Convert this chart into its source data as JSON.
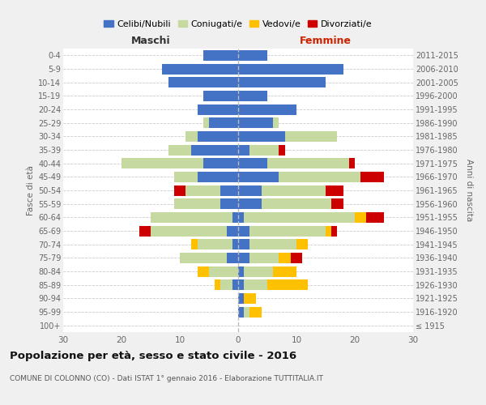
{
  "age_groups": [
    "100+",
    "95-99",
    "90-94",
    "85-89",
    "80-84",
    "75-79",
    "70-74",
    "65-69",
    "60-64",
    "55-59",
    "50-54",
    "45-49",
    "40-44",
    "35-39",
    "30-34",
    "25-29",
    "20-24",
    "15-19",
    "10-14",
    "5-9",
    "0-4"
  ],
  "birth_years": [
    "≤ 1915",
    "1916-1920",
    "1921-1925",
    "1926-1930",
    "1931-1935",
    "1936-1940",
    "1941-1945",
    "1946-1950",
    "1951-1955",
    "1956-1960",
    "1961-1965",
    "1966-1970",
    "1971-1975",
    "1976-1980",
    "1981-1985",
    "1986-1990",
    "1991-1995",
    "1996-2000",
    "2001-2005",
    "2006-2010",
    "2011-2015"
  ],
  "male": {
    "celibi": [
      0,
      0,
      0,
      1,
      0,
      2,
      1,
      2,
      1,
      3,
      3,
      7,
      6,
      8,
      7,
      5,
      7,
      6,
      12,
      13,
      6
    ],
    "coniugati": [
      0,
      0,
      0,
      2,
      5,
      8,
      6,
      13,
      14,
      8,
      6,
      4,
      14,
      4,
      2,
      1,
      0,
      0,
      0,
      0,
      0
    ],
    "vedovi": [
      0,
      0,
      0,
      1,
      2,
      0,
      1,
      0,
      0,
      0,
      0,
      0,
      0,
      0,
      0,
      0,
      0,
      0,
      0,
      0,
      0
    ],
    "divorziati": [
      0,
      0,
      0,
      0,
      0,
      0,
      0,
      2,
      0,
      0,
      2,
      0,
      0,
      0,
      0,
      0,
      0,
      0,
      0,
      0,
      0
    ]
  },
  "female": {
    "nubili": [
      0,
      1,
      1,
      1,
      1,
      2,
      2,
      2,
      1,
      4,
      4,
      7,
      5,
      2,
      8,
      6,
      10,
      5,
      15,
      18,
      5
    ],
    "coniugate": [
      0,
      1,
      0,
      4,
      5,
      5,
      8,
      13,
      19,
      12,
      11,
      14,
      14,
      5,
      9,
      1,
      0,
      0,
      0,
      0,
      0
    ],
    "vedove": [
      0,
      2,
      2,
      7,
      4,
      2,
      2,
      1,
      2,
      0,
      0,
      0,
      0,
      0,
      0,
      0,
      0,
      0,
      0,
      0,
      0
    ],
    "divorziate": [
      0,
      0,
      0,
      0,
      0,
      2,
      0,
      1,
      3,
      2,
      3,
      4,
      1,
      1,
      0,
      0,
      0,
      0,
      0,
      0,
      0
    ]
  },
  "colors": {
    "celibi_nubili": "#4472c4",
    "coniugati": "#c5d9a0",
    "vedovi": "#ffc000",
    "divorziati": "#cc0000"
  },
  "title": "Popolazione per età, sesso e stato civile - 2016",
  "subtitle": "COMUNE DI COLONNO (CO) - Dati ISTAT 1° gennaio 2016 - Elaborazione TUTTITALIA.IT",
  "xlabel_left": "Maschi",
  "xlabel_right": "Femmine",
  "ylabel_left": "Fasce di età",
  "ylabel_right": "Anni di nascita",
  "xlim": 30,
  "bg_color": "#f0f0f0",
  "plot_bg": "#ffffff",
  "legend_labels": [
    "Celibi/Nubili",
    "Coniugati/e",
    "Vedovi/e",
    "Divorziati/e"
  ]
}
